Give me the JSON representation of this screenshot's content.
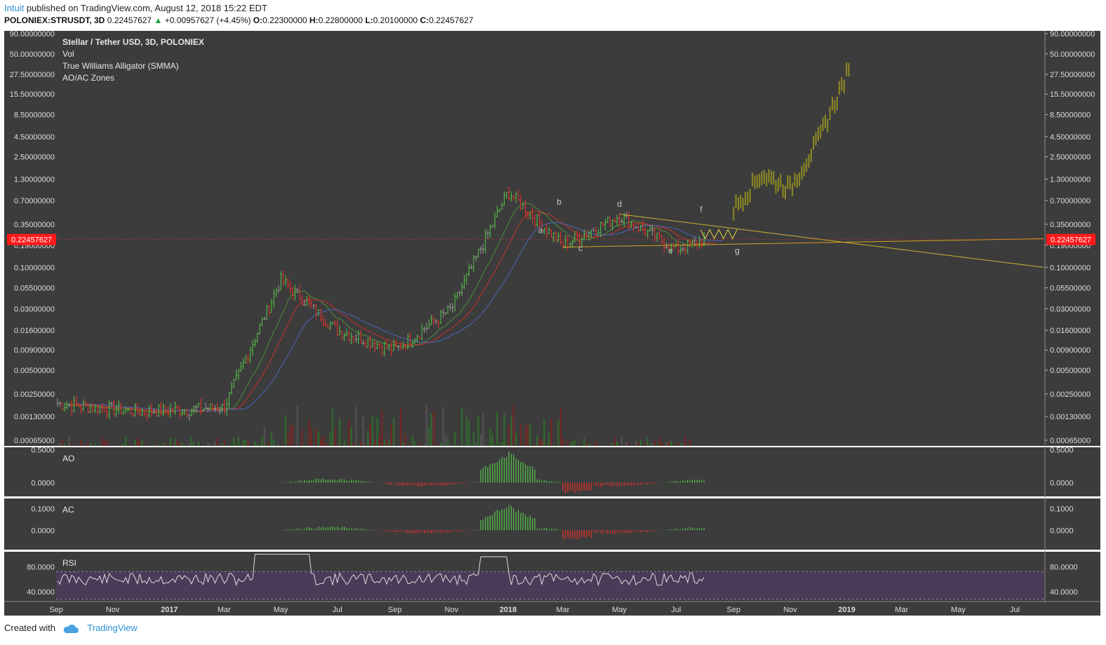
{
  "header": {
    "author": "Intuit",
    "published": "published on TradingView.com, August 12, 2018 15:22 EDT",
    "symbol": "POLONIEX:STRUSDT, 3D",
    "last": "0.22457627",
    "change_arrow": "▲",
    "change": "+0.00957627 (+4.45%)",
    "o_label": "O:",
    "o": "0.22300000",
    "h_label": "H:",
    "h": "0.22800000",
    "l_label": "L:",
    "l": "0.20100000",
    "c_label": "C:",
    "c": "0.22457627"
  },
  "legend": [
    "Stellar / Tether USD, 3D, POLONIEX",
    "Vol",
    "True Williams Alligator (SMMA)",
    "AO/AC Zones"
  ],
  "price_badge": "0.22457627",
  "price_axis_labels": [
    "90.00000000",
    "50.00000000",
    "27.50000000",
    "15.50000000",
    "8.50000000",
    "4.50000000",
    "2.50000000",
    "1.30000000",
    "0.70000000",
    "0.35000000",
    "0.19000000",
    "0.10000000",
    "0.05500000",
    "0.03000000",
    "0.01600000",
    "0.00900000",
    "0.00500000",
    "0.00250000",
    "0.00130000",
    "0.00065000"
  ],
  "wave_labels": [
    "a",
    "b",
    "c",
    "d",
    "e",
    "f",
    "g"
  ],
  "panes": {
    "ao": {
      "title": "AO",
      "ticks": [
        "0.5000",
        "0.0000"
      ]
    },
    "ac": {
      "title": "AC",
      "ticks": [
        "0.1000",
        "0.0000"
      ]
    },
    "rsi": {
      "title": "RSI",
      "ticks": [
        "80.0000",
        "40.0000"
      ]
    }
  },
  "time_axis": [
    "Sep",
    "Nov",
    "2017",
    "Mar",
    "May",
    "Jul",
    "Sep",
    "Nov",
    "2018",
    "Mar",
    "May",
    "Jul",
    "Sep",
    "Nov",
    "2019",
    "Mar",
    "May",
    "Jul"
  ],
  "footer": {
    "created_with": "Created with",
    "brand": "TradingView"
  },
  "colors": {
    "background": "#3c3c3c",
    "bull": "#57c54a",
    "bear": "#e8302a",
    "neutral": "#9a9a9a",
    "projection": "#8f8a24",
    "trendline": "#c9b43a",
    "lips": "#4b8f3a",
    "teeth": "#c9302c",
    "jaw": "#4a67b8",
    "rsi_fill": "#4a3b58",
    "badge": "#ff1a1a"
  },
  "chart_data": {
    "type": "candlestick",
    "title": "Stellar / Tether USD, 3D, POLONIEX",
    "scale": "log",
    "ylim": [
      0.00065,
      90
    ],
    "xlim": [
      "2016-09",
      "2019-08"
    ],
    "last_price": 0.22457627,
    "key_points": [
      {
        "x": "2016-09",
        "y": 0.0019
      },
      {
        "x": "2016-12",
        "y": 0.0015
      },
      {
        "x": "2017-03",
        "y": 0.0017
      },
      {
        "x": "2017-05",
        "y": 0.07
      },
      {
        "x": "2017-07",
        "y": 0.016
      },
      {
        "x": "2017-09",
        "y": 0.009
      },
      {
        "x": "2017-11",
        "y": 0.03
      },
      {
        "x": "2018-01",
        "y": 0.9
      },
      {
        "x": "2018-03",
        "y": 0.19
      },
      {
        "x": "2018-05",
        "y": 0.45
      },
      {
        "x": "2018-07",
        "y": 0.17
      },
      {
        "x": "2018-08",
        "y": 0.22457627
      }
    ],
    "projection_points": [
      {
        "x": "2018-09",
        "y": 0.55
      },
      {
        "x": "2018-10",
        "y": 1.5
      },
      {
        "x": "2018-11",
        "y": 1.0
      },
      {
        "x": "2018-12",
        "y": 4.0
      },
      {
        "x": "2019-01",
        "y": 27.5
      }
    ],
    "grid": false
  }
}
